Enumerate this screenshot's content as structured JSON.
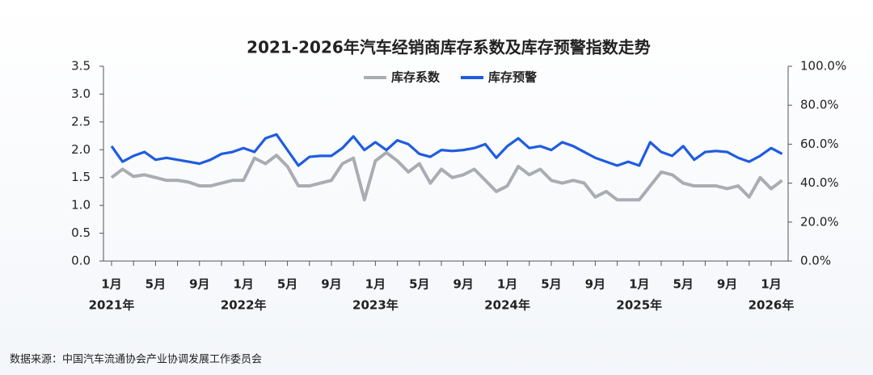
{
  "chart_data": {
    "type": "line",
    "title": "2021-2026年汽车经销商库存系数及库存预警指数走势",
    "categories": [
      "1月",
      null,
      null,
      null,
      "5月",
      null,
      null,
      null,
      "9月",
      null,
      null,
      null,
      "1月",
      null,
      null,
      null,
      "5月",
      null,
      null,
      null,
      "9月",
      null,
      null,
      null,
      "1月",
      null,
      null,
      null,
      "5月",
      null,
      null,
      null,
      "9月",
      null,
      null,
      null,
      "1月",
      null,
      null,
      null,
      "5月",
      null,
      null,
      null,
      "9月",
      null,
      null,
      null,
      "1月",
      null,
      null,
      null,
      "5月",
      null,
      null,
      null,
      "9月",
      null,
      null,
      null,
      "1月",
      null
    ],
    "year_labels": [
      "2021年",
      null,
      null,
      null,
      null,
      null,
      null,
      null,
      null,
      null,
      null,
      null,
      "2022年",
      null,
      null,
      null,
      null,
      null,
      null,
      null,
      null,
      null,
      null,
      null,
      "2023年",
      null,
      null,
      null,
      null,
      null,
      null,
      null,
      null,
      null,
      null,
      null,
      "2024年",
      null,
      null,
      null,
      null,
      null,
      null,
      null,
      null,
      null,
      null,
      null,
      "2025年",
      null,
      null,
      null,
      null,
      null,
      null,
      null,
      null,
      null,
      null,
      null,
      "2026年",
      null
    ],
    "series": [
      {
        "name": "库存系数",
        "color": "#a9adb3",
        "axis": "y",
        "values": [
          1.5,
          1.65,
          1.52,
          1.55,
          1.5,
          1.45,
          1.45,
          1.42,
          1.35,
          1.35,
          1.4,
          1.45,
          1.45,
          1.85,
          1.75,
          1.9,
          1.7,
          1.35,
          1.35,
          1.4,
          1.45,
          1.75,
          1.85,
          1.1,
          1.8,
          1.95,
          1.8,
          1.6,
          1.75,
          1.4,
          1.65,
          1.5,
          1.55,
          1.65,
          1.45,
          1.25,
          1.35,
          1.7,
          1.55,
          1.65,
          1.45,
          1.4,
          1.45,
          1.4,
          1.15,
          1.25,
          1.1,
          1.1,
          1.1,
          1.35,
          1.6,
          1.55,
          1.4,
          1.35,
          1.35,
          1.35,
          1.3,
          1.35,
          1.15,
          1.5,
          1.3,
          1.45
        ]
      },
      {
        "name": "库存预警",
        "color": "#1f5ce0",
        "axis": "y2",
        "values": [
          59,
          51,
          54,
          56,
          52,
          53,
          52,
          51,
          50,
          52,
          55,
          56,
          58,
          56,
          63,
          65,
          57,
          49,
          53.5,
          54,
          54,
          58,
          64,
          57,
          61,
          57,
          62,
          60,
          55,
          53.5,
          57,
          56.5,
          57,
          58,
          60,
          53,
          59,
          63,
          58,
          59,
          57,
          61,
          59,
          56,
          53,
          51,
          49,
          51,
          49,
          61,
          56,
          54,
          59,
          52,
          56,
          56.5,
          56,
          53,
          51,
          54,
          58,
          55
        ]
      }
    ],
    "ylim": [
      0,
      3.5
    ],
    "yticks": [
      {
        "value": 0,
        "label": "0.0"
      },
      0.5,
      {
        "value": 1,
        "label": "1.0"
      },
      1.5,
      {
        "value": 2,
        "label": "2.0"
      },
      2.5,
      {
        "value": 3,
        "label": "3.0"
      },
      3.5
    ],
    "y2lim": [
      0,
      100
    ],
    "y2ticks": [
      {
        "value": 0,
        "label": "0.0%"
      },
      {
        "value": 20,
        "label": "20.0%"
      },
      {
        "value": 40,
        "label": "40.0%"
      },
      {
        "value": 60,
        "label": "60.0%"
      },
      {
        "value": 80,
        "label": "80.0%"
      },
      {
        "value": 100,
        "label": "100.0%"
      }
    ],
    "legend": "top",
    "source": "数据来源：中国汽车流通协会产业协调发展工作委员会"
  }
}
